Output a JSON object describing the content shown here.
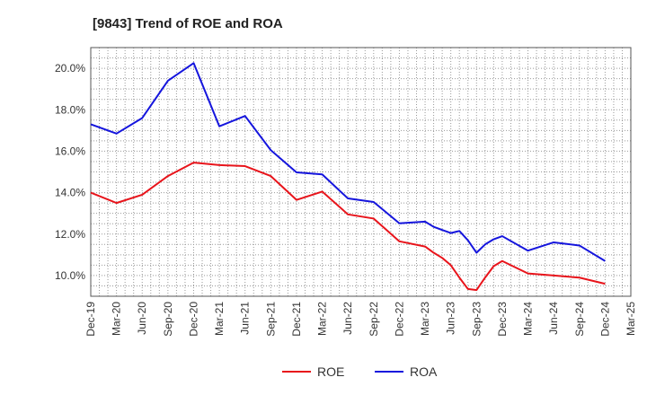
{
  "chart_data": {
    "type": "line",
    "title": "[9843]  Trend of ROE and ROA",
    "xlabel": "",
    "ylabel": "",
    "x": [
      "2019-12",
      "2020-03",
      "2020-06",
      "2020-09",
      "2020-12",
      "2021-03",
      "2021-06",
      "2021-09",
      "2021-12",
      "2022-03",
      "2022-06",
      "2022-09",
      "2022-12",
      "2023-03",
      "2023-04",
      "2023-05",
      "2023-06",
      "2023-07",
      "2023-08",
      "2023-09",
      "2023-10",
      "2023-11",
      "2023-12",
      "2024-03",
      "2024-06",
      "2024-09",
      "2024-12"
    ],
    "x_ticks": [
      "Dec-19",
      "Mar-20",
      "Jun-20",
      "Sep-20",
      "Dec-20",
      "Mar-21",
      "Jun-21",
      "Sep-21",
      "Dec-21",
      "Mar-22",
      "Jun-22",
      "Sep-22",
      "Dec-22",
      "Mar-23",
      "Jun-23",
      "Sep-23",
      "Dec-23",
      "Mar-24",
      "Jun-24",
      "Sep-24",
      "Dec-24",
      "Mar-25"
    ],
    "xlim": [
      "2019-12",
      "2025-03"
    ],
    "y_ticks": [
      "10.0%",
      "12.0%",
      "14.0%",
      "16.0%",
      "18.0%",
      "20.0%"
    ],
    "ylim": [
      9.0,
      21.0
    ],
    "grid": true,
    "legend": "bottom",
    "series": [
      {
        "name": "ROE",
        "color": "#e8141b",
        "points": [
          [
            "2019-12",
            14.0
          ],
          [
            "2020-03",
            13.5
          ],
          [
            "2020-06",
            13.9
          ],
          [
            "2020-09",
            14.8
          ],
          [
            "2020-12",
            15.45
          ],
          [
            "2021-03",
            15.33
          ],
          [
            "2021-06",
            15.28
          ],
          [
            "2021-09",
            14.8
          ],
          [
            "2021-12",
            13.65
          ],
          [
            "2022-03",
            14.05
          ],
          [
            "2022-06",
            12.95
          ],
          [
            "2022-09",
            12.75
          ],
          [
            "2022-12",
            11.65
          ],
          [
            "2023-03",
            11.4
          ],
          [
            "2023-04",
            11.1
          ],
          [
            "2023-05",
            10.85
          ],
          [
            "2023-06",
            10.5
          ],
          [
            "2023-07",
            9.9
          ],
          [
            "2023-08",
            9.35
          ],
          [
            "2023-09",
            9.3
          ],
          [
            "2023-10",
            9.9
          ],
          [
            "2023-11",
            10.45
          ],
          [
            "2023-12",
            10.7
          ],
          [
            "2024-03",
            10.1
          ],
          [
            "2024-06",
            10.0
          ],
          [
            "2024-09",
            9.9
          ],
          [
            "2024-12",
            9.6
          ]
        ]
      },
      {
        "name": "ROA",
        "color": "#1515dd",
        "points": [
          [
            "2019-12",
            17.3
          ],
          [
            "2020-03",
            16.85
          ],
          [
            "2020-06",
            17.6
          ],
          [
            "2020-09",
            19.4
          ],
          [
            "2020-12",
            20.25
          ],
          [
            "2021-03",
            17.2
          ],
          [
            "2021-06",
            17.7
          ],
          [
            "2021-09",
            16.05
          ],
          [
            "2021-12",
            14.98
          ],
          [
            "2022-03",
            14.88
          ],
          [
            "2022-06",
            13.72
          ],
          [
            "2022-09",
            13.55
          ],
          [
            "2022-12",
            12.52
          ],
          [
            "2023-03",
            12.6
          ],
          [
            "2023-04",
            12.35
          ],
          [
            "2023-05",
            12.2
          ],
          [
            "2023-06",
            12.05
          ],
          [
            "2023-07",
            12.15
          ],
          [
            "2023-08",
            11.7
          ],
          [
            "2023-09",
            11.1
          ],
          [
            "2023-10",
            11.5
          ],
          [
            "2023-11",
            11.75
          ],
          [
            "2023-12",
            11.9
          ],
          [
            "2024-03",
            11.2
          ],
          [
            "2024-06",
            11.6
          ],
          [
            "2024-09",
            11.45
          ],
          [
            "2024-12",
            10.7
          ]
        ]
      }
    ]
  }
}
